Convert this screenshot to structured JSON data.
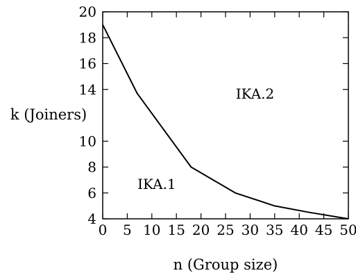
{
  "chart_data": {
    "type": "line",
    "title": "",
    "xlabel": "n (Group size)",
    "ylabel": "k (Joiners)",
    "xlim": [
      0,
      50
    ],
    "ylim": [
      4,
      20
    ],
    "xticks": [
      0,
      5,
      10,
      15,
      20,
      25,
      30,
      35,
      40,
      45,
      50
    ],
    "yticks": [
      4,
      6,
      8,
      10,
      14,
      16,
      18,
      20
    ],
    "grid": false,
    "legend": "none",
    "series": [
      {
        "x": [
          0,
          7,
          18,
          27,
          35,
          42,
          50
        ],
        "y": [
          19,
          13.7,
          8,
          6,
          5,
          4.5,
          4
        ],
        "color": "#000000"
      }
    ],
    "annotations": [
      {
        "text": "IKA.2",
        "x": 31,
        "y": 13.3
      },
      {
        "text": "IKA.1",
        "x": 11,
        "y": 6.3
      }
    ]
  }
}
